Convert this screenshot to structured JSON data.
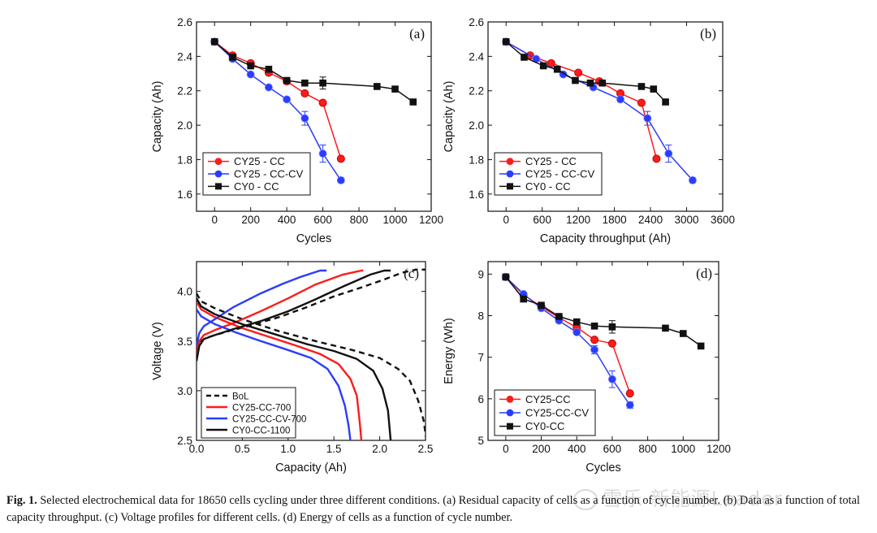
{
  "figure": {
    "caption_label": "Fig. 1.",
    "caption_text": "Selected electrochemical data for 18650 cells cycling under three different conditions. (a) Residual capacity of cells as a function of cycle number. (b) Data as a function of total capacity throughput. (c) Voltage profiles for different cells. (d) Energy of cells as a function of cycle number.",
    "watermark": "雪乐 新能源Leader"
  },
  "colors": {
    "red": "#ff1a1a",
    "blue": "#2a3cff",
    "black": "#111111"
  },
  "chart_data": [
    {
      "id": "a",
      "panel_label": "(a)",
      "type": "line",
      "xlabel": "Cycles",
      "ylabel": "Capacity (Ah)",
      "xlim": [
        -100,
        1200
      ],
      "ylim": [
        1.5,
        2.6
      ],
      "xticks": [
        0,
        200,
        400,
        600,
        800,
        1000,
        1200
      ],
      "yticks": [
        1.6,
        1.8,
        2.0,
        2.2,
        2.4,
        2.6
      ],
      "ytick_decimals": 1,
      "legend": {
        "position": "bottom-left"
      },
      "series": [
        {
          "name": "CY25 - CC",
          "color": "#ff1a1a",
          "marker": "circle",
          "x": [
            0,
            100,
            200,
            300,
            400,
            500,
            600,
            700
          ],
          "y": [
            2.485,
            2.405,
            2.36,
            2.305,
            2.255,
            2.185,
            2.13,
            1.805
          ]
        },
        {
          "name": "CY25 - CC-CV",
          "color": "#2a3cff",
          "marker": "circle",
          "x": [
            0,
            100,
            200,
            300,
            400,
            500,
            600,
            700
          ],
          "y": [
            2.485,
            2.385,
            2.295,
            2.22,
            2.15,
            2.04,
            1.835,
            1.68
          ],
          "err": [
            0,
            0,
            0,
            0,
            0,
            0.04,
            0.05,
            0.015
          ]
        },
        {
          "name": "CY0 - CC",
          "color": "#111111",
          "marker": "square",
          "x": [
            0,
            100,
            200,
            300,
            400,
            500,
            600,
            900,
            1000,
            1100
          ],
          "y": [
            2.485,
            2.395,
            2.345,
            2.325,
            2.26,
            2.245,
            2.245,
            2.225,
            2.21,
            2.135
          ],
          "err": [
            0,
            0,
            0,
            0,
            0,
            0,
            0.035,
            0,
            0,
            0
          ]
        }
      ]
    },
    {
      "id": "b",
      "panel_label": "(b)",
      "type": "line",
      "xlabel": "Capacity throughput (Ah)",
      "ylabel": "Capacity (Ah)",
      "xlim": [
        -300,
        3600
      ],
      "ylim": [
        1.5,
        2.6
      ],
      "xticks": [
        0,
        600,
        1200,
        1800,
        2400,
        3000,
        3600
      ],
      "yticks": [
        1.6,
        1.8,
        2.0,
        2.2,
        2.4,
        2.6
      ],
      "ytick_decimals": 1,
      "legend": {
        "position": "bottom-left"
      },
      "series": [
        {
          "name": "CY25 - CC",
          "color": "#ff1a1a",
          "marker": "circle",
          "x": [
            0,
            400,
            750,
            1200,
            1550,
            1900,
            2250,
            2500
          ],
          "y": [
            2.485,
            2.405,
            2.36,
            2.305,
            2.255,
            2.185,
            2.13,
            1.805
          ]
        },
        {
          "name": "CY25 - CC-CV",
          "color": "#2a3cff",
          "marker": "circle",
          "x": [
            0,
            500,
            950,
            1450,
            1900,
            2350,
            2700,
            3100
          ],
          "y": [
            2.485,
            2.385,
            2.295,
            2.22,
            2.15,
            2.04,
            1.835,
            1.68
          ],
          "err": [
            0,
            0,
            0,
            0,
            0,
            0.04,
            0.05,
            0.015
          ]
        },
        {
          "name": "CY0 - CC",
          "color": "#111111",
          "marker": "square",
          "x": [
            0,
            300,
            620,
            850,
            1150,
            1400,
            1600,
            2250,
            2450,
            2650
          ],
          "y": [
            2.485,
            2.395,
            2.345,
            2.325,
            2.26,
            2.245,
            2.245,
            2.225,
            2.21,
            2.135
          ]
        }
      ]
    },
    {
      "id": "c",
      "panel_label": "(c)",
      "type": "line",
      "xlabel": "Capacity (Ah)",
      "ylabel": "Voltage (V)",
      "xlim": [
        0,
        2.5
      ],
      "ylim": [
        2.5,
        4.3
      ],
      "xticks": [
        0.0,
        0.5,
        1.0,
        1.5,
        2.0,
        2.5
      ],
      "yticks": [
        2.5,
        3.0,
        3.5,
        4.0
      ],
      "xtick_decimals": 1,
      "ytick_decimals": 1,
      "legend": {
        "position": "bottom-left"
      },
      "series": [
        {
          "name": "BoL",
          "color": "#111111",
          "dash": true,
          "curves": [
            {
              "x": [
                0,
                0.02,
                0.05,
                0.1,
                0.2,
                0.35,
                0.6,
                0.9,
                1.2,
                1.5,
                1.8,
                2.05,
                2.25,
                2.4,
                2.48,
                2.52
              ],
              "y": [
                3.3,
                3.45,
                3.5,
                3.53,
                3.56,
                3.6,
                3.66,
                3.74,
                3.84,
                3.95,
                4.04,
                4.12,
                4.19,
                4.22,
                4.22,
                4.22
              ]
            },
            {
              "x": [
                0,
                0.05,
                0.2,
                0.5,
                0.9,
                1.3,
                1.7,
                2.0,
                2.2,
                2.33,
                2.42,
                2.48,
                2.51
              ],
              "y": [
                3.98,
                3.9,
                3.83,
                3.72,
                3.6,
                3.5,
                3.41,
                3.33,
                3.22,
                3.1,
                2.9,
                2.7,
                2.5
              ]
            }
          ]
        },
        {
          "name": "CY25-CC-700",
          "color": "#ff1a1a",
          "dash": false,
          "curves": [
            {
              "x": [
                0,
                0.03,
                0.08,
                0.2,
                0.4,
                0.7,
                1.0,
                1.3,
                1.6,
                1.8,
                1.82
              ],
              "y": [
                3.35,
                3.5,
                3.56,
                3.61,
                3.68,
                3.8,
                3.93,
                4.07,
                4.17,
                4.21,
                4.21
              ]
            },
            {
              "x": [
                0,
                0.05,
                0.2,
                0.5,
                0.8,
                1.1,
                1.35,
                1.55,
                1.68,
                1.75,
                1.78,
                1.8
              ],
              "y": [
                3.9,
                3.82,
                3.74,
                3.63,
                3.54,
                3.45,
                3.37,
                3.27,
                3.12,
                2.95,
                2.7,
                2.5
              ]
            }
          ]
        },
        {
          "name": "CY25-CC-CV-700",
          "color": "#2a3cff",
          "dash": false,
          "curves": [
            {
              "x": [
                0,
                0.03,
                0.08,
                0.2,
                0.4,
                0.7,
                0.95,
                1.15,
                1.35,
                1.42
              ],
              "y": [
                3.45,
                3.58,
                3.65,
                3.72,
                3.84,
                3.98,
                4.08,
                4.15,
                4.21,
                4.21
              ]
            },
            {
              "x": [
                0,
                0.05,
                0.2,
                0.45,
                0.7,
                1.0,
                1.25,
                1.43,
                1.55,
                1.62,
                1.66,
                1.68
              ],
              "y": [
                3.82,
                3.75,
                3.67,
                3.58,
                3.5,
                3.41,
                3.33,
                3.22,
                3.05,
                2.85,
                2.65,
                2.5
              ]
            }
          ]
        },
        {
          "name": "CY0-CC-1100",
          "color": "#111111",
          "dash": false,
          "curves": [
            {
              "x": [
                0,
                0.03,
                0.08,
                0.2,
                0.4,
                0.7,
                1.0,
                1.3,
                1.6,
                1.9,
                2.05,
                2.12
              ],
              "y": [
                3.3,
                3.45,
                3.52,
                3.56,
                3.62,
                3.7,
                3.8,
                3.92,
                4.05,
                4.17,
                4.21,
                4.21
              ]
            },
            {
              "x": [
                0,
                0.05,
                0.2,
                0.5,
                0.85,
                1.2,
                1.5,
                1.75,
                1.93,
                2.03,
                2.09,
                2.12
              ],
              "y": [
                3.93,
                3.85,
                3.77,
                3.67,
                3.57,
                3.47,
                3.4,
                3.32,
                3.2,
                3.02,
                2.8,
                2.5
              ]
            }
          ]
        }
      ]
    },
    {
      "id": "d",
      "panel_label": "(d)",
      "type": "line",
      "xlabel": "Cycles",
      "ylabel": "Energy (Wh)",
      "xlim": [
        -100,
        1200
      ],
      "ylim": [
        5,
        9.3
      ],
      "xticks": [
        0,
        200,
        400,
        600,
        800,
        1000,
        1200
      ],
      "yticks": [
        5,
        6,
        7,
        8,
        9
      ],
      "ytick_decimals": 0,
      "legend": {
        "position": "bottom-left"
      },
      "series": [
        {
          "name": "CY25-CC",
          "color": "#ff1a1a",
          "marker": "circle",
          "x": [
            0,
            100,
            200,
            300,
            400,
            500,
            600,
            700
          ],
          "y": [
            8.93,
            8.5,
            8.22,
            7.95,
            7.72,
            7.42,
            7.33,
            6.13
          ]
        },
        {
          "name": "CY25-CC-CV",
          "color": "#2a3cff",
          "marker": "circle",
          "x": [
            0,
            100,
            200,
            300,
            400,
            500,
            600,
            700
          ],
          "y": [
            8.93,
            8.52,
            8.18,
            7.88,
            7.6,
            7.18,
            6.47,
            5.85
          ],
          "err": [
            0,
            0,
            0,
            0,
            0,
            0.1,
            0.2,
            0.08
          ]
        },
        {
          "name": "CY0-CC",
          "color": "#111111",
          "marker": "square",
          "x": [
            0,
            100,
            200,
            300,
            400,
            500,
            600,
            900,
            1000,
            1100
          ],
          "y": [
            8.93,
            8.4,
            8.25,
            7.98,
            7.85,
            7.75,
            7.73,
            7.7,
            7.57,
            7.27
          ],
          "err": [
            0,
            0,
            0,
            0,
            0,
            0,
            0.15,
            0,
            0,
            0
          ]
        }
      ]
    }
  ]
}
